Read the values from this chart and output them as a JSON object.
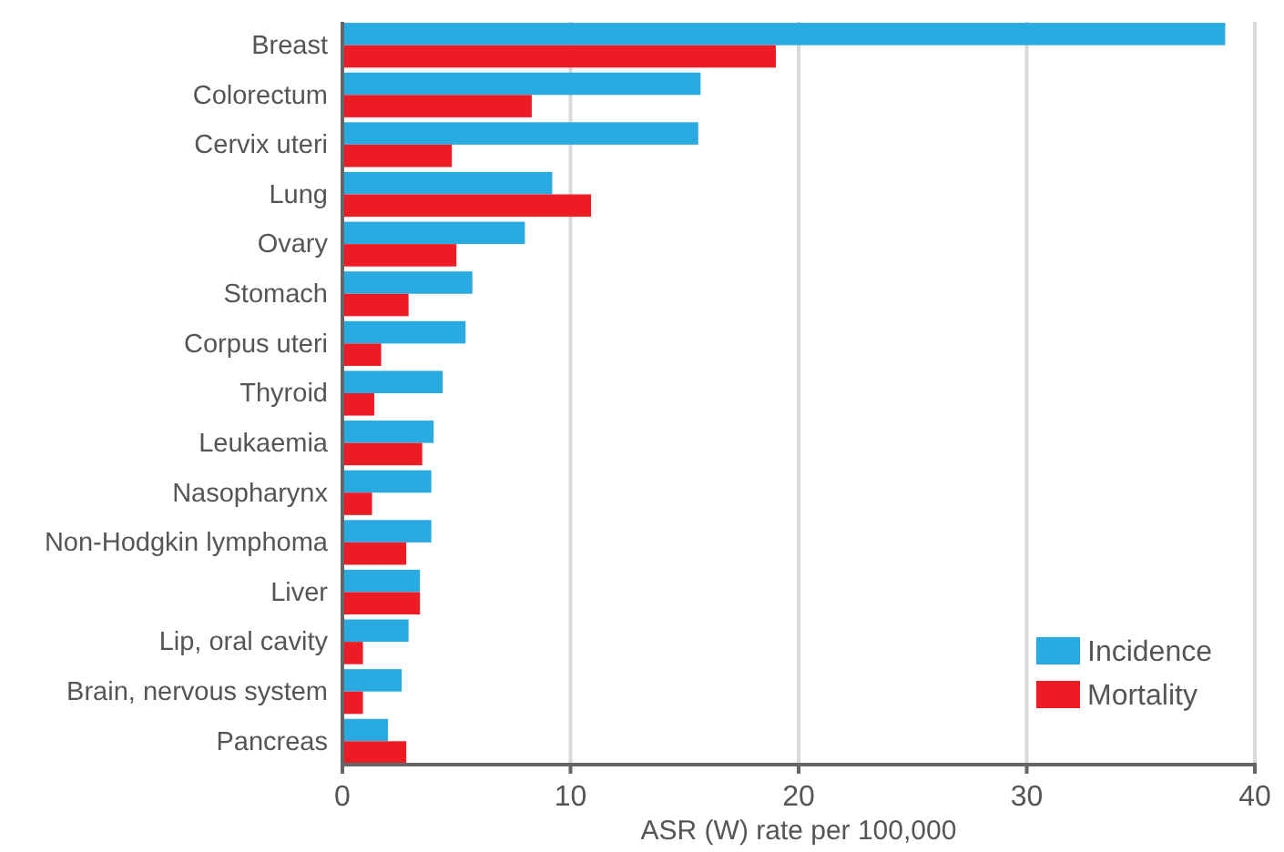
{
  "chart_data": {
    "type": "bar",
    "orientation": "horizontal",
    "xlabel": "ASR (W) rate per 100,000",
    "categories": [
      "Breast",
      "Colorectum",
      "Cervix uteri",
      "Lung",
      "Ovary",
      "Stomach",
      "Corpus uteri",
      "Thyroid",
      "Leukaemia",
      "Nasopharynx",
      "Non-Hodgkin lymphoma",
      "Liver",
      "Lip, oral cavity",
      "Brain, nervous system",
      "Pancreas"
    ],
    "series": [
      {
        "name": "Incidence",
        "color": "#29abe2",
        "values": [
          38.7,
          15.7,
          15.6,
          9.2,
          8.0,
          5.7,
          5.4,
          4.4,
          4.0,
          3.9,
          3.9,
          3.4,
          2.9,
          2.6,
          2.0
        ]
      },
      {
        "name": "Mortality",
        "color": "#ed1c24",
        "values": [
          19.0,
          8.3,
          4.8,
          10.9,
          5.0,
          2.9,
          1.7,
          1.4,
          3.5,
          1.3,
          2.8,
          3.4,
          0.9,
          0.9,
          2.8
        ]
      }
    ],
    "xlim": [
      0,
      40
    ],
    "xticks": [
      0,
      10,
      20,
      30,
      40
    ],
    "grid": "x",
    "legend": "bottom right"
  }
}
